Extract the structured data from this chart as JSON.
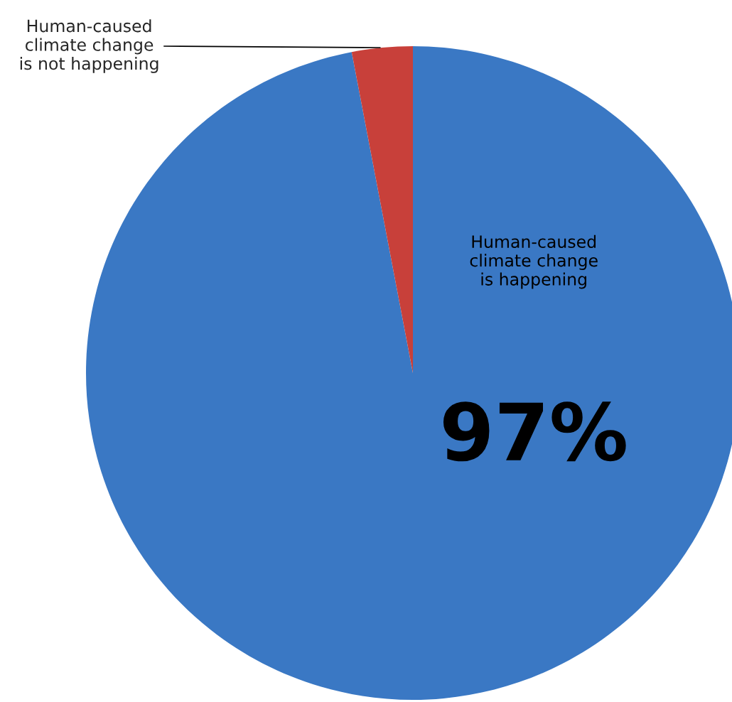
{
  "chart_data": {
    "type": "pie",
    "categories": [
      "Human-caused\nclimate change\nis happening",
      "Human-caused\nclimate change\nis not happening"
    ],
    "values": [
      97,
      3
    ],
    "colors": [
      "#3a78c4",
      "#c8403a"
    ],
    "value_labels": [
      "97%",
      null
    ],
    "legend": false
  }
}
